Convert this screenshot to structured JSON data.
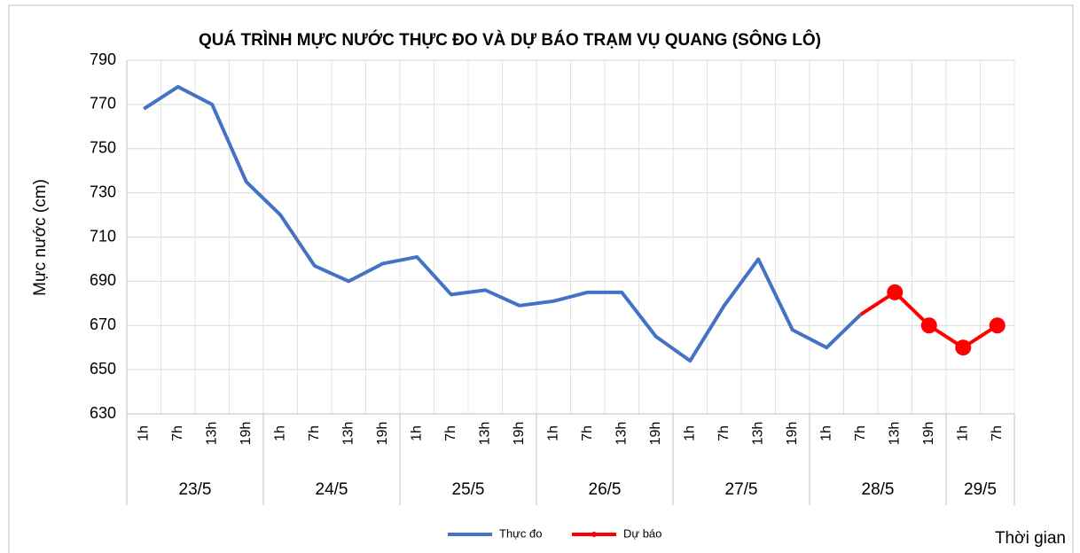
{
  "chart_data": {
    "type": "line",
    "title": "QUÁ TRÌNH MỰC NƯỚC THỰC ĐO VÀ DỰ BÁO TRẠM VỤ QUANG (SÔNG LÔ)",
    "y_label": "Mực nước (cm)",
    "x_label": "Thời gian",
    "groups": [
      {
        "label": "23/5",
        "categories": [
          "1h",
          "7h",
          "13h",
          "19h"
        ]
      },
      {
        "label": "24/5",
        "categories": [
          "1h",
          "7h",
          "13h",
          "19h"
        ]
      },
      {
        "label": "25/5",
        "categories": [
          "1h",
          "7h",
          "13h",
          "19h"
        ]
      },
      {
        "label": "26/5",
        "categories": [
          "1h",
          "7h",
          "13h",
          "19h"
        ]
      },
      {
        "label": "27/5",
        "categories": [
          "1h",
          "7h",
          "13h",
          "19h"
        ]
      },
      {
        "label": "28/5",
        "categories": [
          "1h",
          "7h",
          "13h",
          "19h"
        ]
      },
      {
        "label": "29/5",
        "categories": [
          "1h",
          "7h"
        ]
      }
    ],
    "series": [
      {
        "name": "Thực đo",
        "color": "#4472c4",
        "marker": false,
        "values": [
          768,
          778,
          770,
          735,
          720,
          697,
          690,
          698,
          701,
          684,
          686,
          679,
          681,
          685,
          685,
          665,
          654,
          679,
          700,
          668,
          660,
          675,
          null,
          null,
          null,
          null
        ]
      },
      {
        "name": "Dự báo",
        "color": "#ff0000",
        "marker": true,
        "values": [
          null,
          null,
          null,
          null,
          null,
          null,
          null,
          null,
          null,
          null,
          null,
          null,
          null,
          null,
          null,
          null,
          null,
          null,
          null,
          null,
          null,
          675,
          685,
          670,
          660,
          670
        ]
      }
    ],
    "ylim": [
      630,
      790
    ],
    "yticks": [
      630,
      650,
      670,
      690,
      710,
      730,
      750,
      770,
      790
    ],
    "grid": true,
    "legend": "bottom"
  }
}
